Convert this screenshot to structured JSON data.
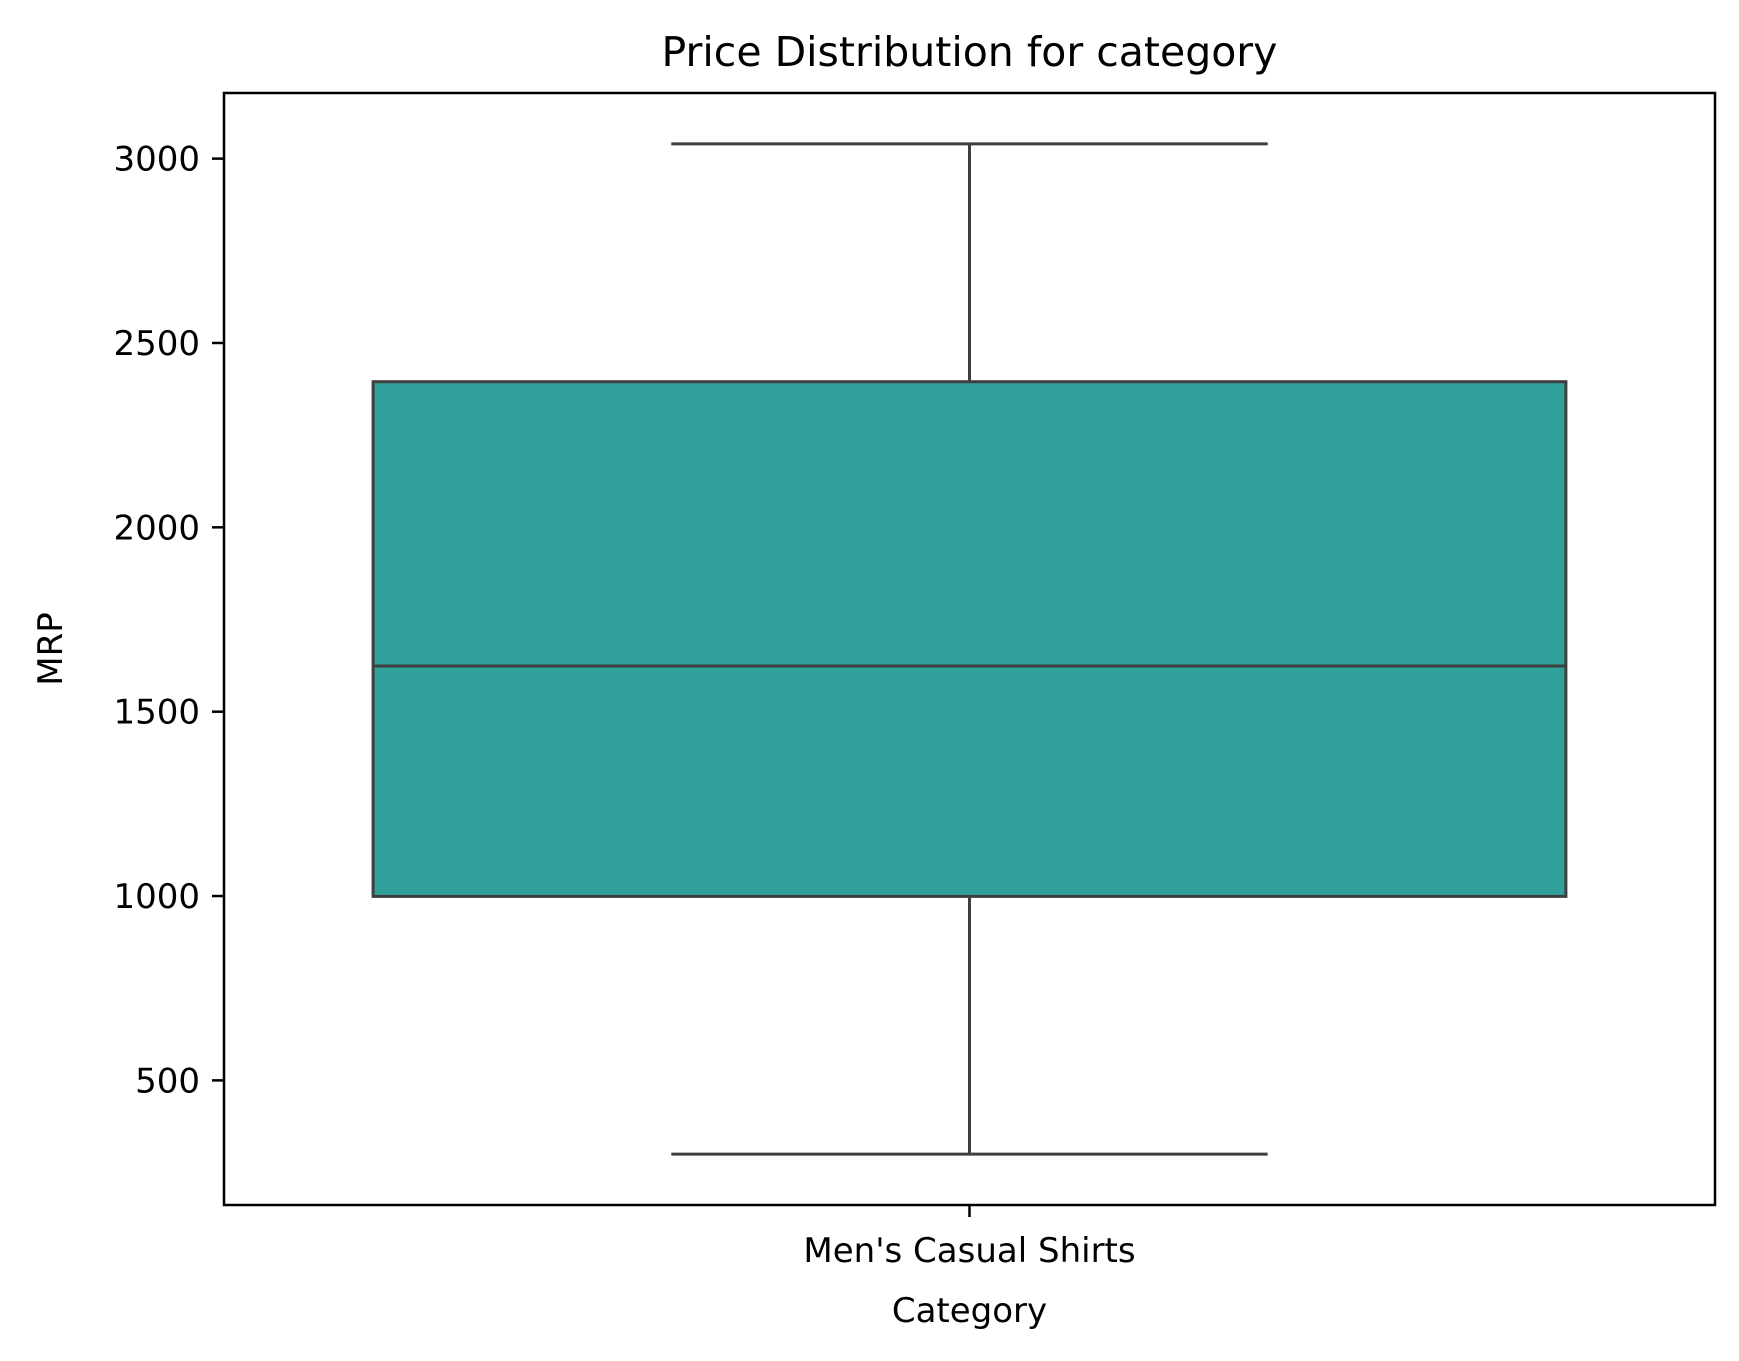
{
  "chart_data": {
    "type": "box",
    "title": "Price Distribution for category",
    "xlabel": "Category",
    "ylabel": "MRP",
    "categories": [
      "Men's Casual Shirts"
    ],
    "boxes": [
      {
        "category": "Men's Casual Shirts",
        "whisker_low": 300,
        "q1": 999,
        "median": 1624,
        "q3": 2395,
        "whisker_high": 3040
      }
    ],
    "ylim": [
      162,
      3178
    ],
    "yticks": [
      500,
      1000,
      1500,
      2000,
      2500,
      3000
    ],
    "ytick_labels": [
      "500",
      "1000",
      "1500",
      "2000",
      "2500",
      "3000"
    ],
    "grid": false,
    "colors": {
      "box_fill": "#32a09a",
      "box_edge": "#3f3f3f",
      "axes": "#000000"
    }
  }
}
